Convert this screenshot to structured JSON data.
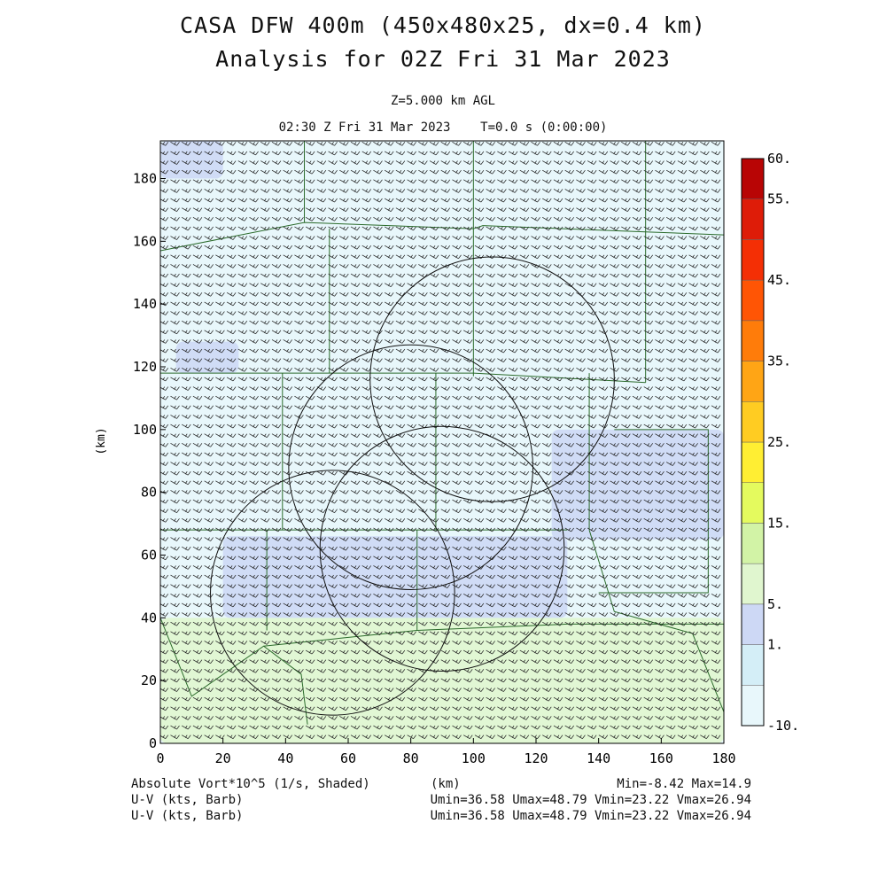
{
  "header": {
    "title_line1": "CASA DFW 400m (450x480x25, dx=0.4 km)",
    "title_line2": "Analysis for 02Z Fri 31 Mar 2023",
    "level": "Z=5.000 km AGL",
    "time": "02:30 Z Fri 31 Mar 2023    T=0.0 s (0:00:00)"
  },
  "footer": {
    "field_label": "Absolute Vort*10^5 (1/s, Shaded)",
    "xunit": "(km)",
    "minmax": "Min=-8.42 Max=14.9",
    "vec1_label": "U-V (kts, Barb)",
    "vec1_stats": "Umin=36.58 Umax=48.79 Vmin=23.22 Vmax=26.94",
    "vec2_label": "U-V (kts, Barb)",
    "vec2_stats": "Umin=36.58 Umax=48.79 Vmin=23.22 Vmax=26.94"
  },
  "chart_data": {
    "type": "heatmap",
    "xlabel": "(km)",
    "ylabel": "(km)",
    "xlim": [
      0,
      180
    ],
    "ylim": [
      0,
      192
    ],
    "xticks": [
      0,
      20,
      40,
      60,
      80,
      100,
      120,
      140,
      160,
      180
    ],
    "yticks": [
      0,
      20,
      40,
      60,
      80,
      100,
      120,
      140,
      160,
      180
    ],
    "colorbar": {
      "levels": [
        -10,
        0,
        1,
        5,
        10,
        15,
        20,
        25,
        30,
        35,
        40,
        45,
        50,
        55,
        60
      ],
      "labels": [
        "60.",
        "55.",
        "45.",
        "35.",
        "25.",
        "15.",
        "5.",
        "1.",
        "-10."
      ],
      "colors": [
        "#e8f7fb",
        "#d4eef7",
        "#cdd8f5",
        "#e0f6cf",
        "#d2f3a6",
        "#e4fa5e",
        "#ffee33",
        "#ffcc22",
        "#ffa515",
        "#ff7c0a",
        "#ff5505",
        "#f42f05",
        "#de1c08",
        "#b80505"
      ]
    },
    "vorticity_regions": [
      {
        "class": 2,
        "x": [
          0,
          180
        ],
        "y": [
          0,
          40
        ]
      },
      {
        "class": 1,
        "x": [
          20,
          130
        ],
        "y": [
          40,
          66
        ]
      },
      {
        "class": 1,
        "x": [
          125,
          180
        ],
        "y": [
          65,
          100
        ]
      },
      {
        "class": 1,
        "x": [
          0,
          20
        ],
        "y": [
          180,
          192
        ]
      },
      {
        "class": 1,
        "x": [
          5,
          25
        ],
        "y": [
          118,
          128
        ]
      }
    ],
    "radar_circles": [
      {
        "cx": 106,
        "cy": 116,
        "r": 39
      },
      {
        "cx": 80,
        "cy": 88,
        "r": 39
      },
      {
        "cx": 90,
        "cy": 62,
        "r": 39
      },
      {
        "cx": 55,
        "cy": 48,
        "r": 39
      }
    ],
    "wind_barbs": {
      "speed_kts": [
        36.58,
        48.79
      ],
      "u_range": [
        36.58,
        48.79
      ],
      "v_range": [
        23.22,
        26.94
      ]
    }
  }
}
